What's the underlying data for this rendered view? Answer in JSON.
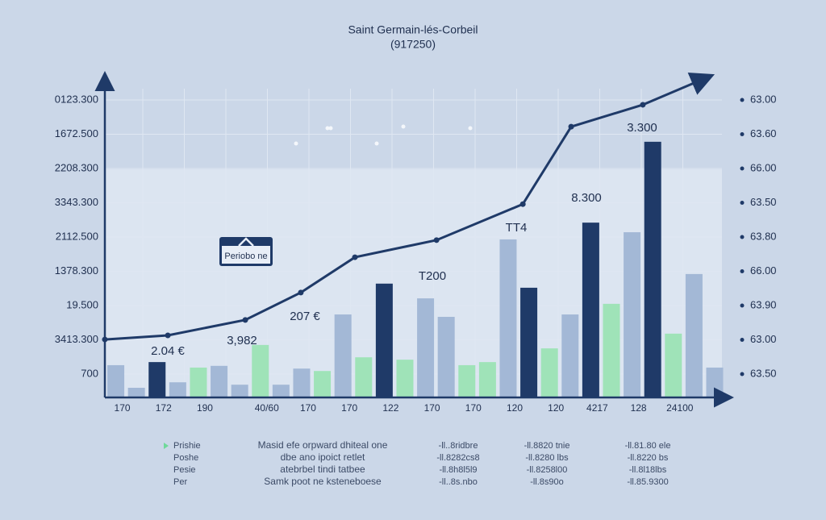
{
  "chart_data": {
    "type": "bar",
    "title": "Saint Germain-lés-Corbeil",
    "subtitle": "(917250)",
    "categories": [
      "170",
      null,
      "172",
      null,
      "190",
      null,
      null,
      "40/60",
      null,
      "170",
      null,
      "170",
      null,
      "122",
      null,
      "170",
      null,
      "170",
      null,
      "120",
      null,
      "120",
      null,
      "4217",
      null,
      "128",
      null,
      "24100",
      null,
      null
    ],
    "values": [
      1.26,
      0.6,
      1.35,
      0.76,
      1.19,
      1.24,
      0.69,
      1.85,
      0.69,
      1.16,
      1.09,
      2.74,
      1.49,
      3.64,
      1.42,
      3.21,
      2.67,
      1.26,
      1.35,
      4.93,
      3.52,
      1.75,
      2.74,
      5.42,
      3.05,
      5.14,
      7.78,
      2.18,
      3.92,
      1.19
    ],
    "colors": [
      "#a3b8d6",
      "#a3b8d6",
      "#1f3a68",
      "#a3b8d6",
      "#9fe3b8",
      "#a3b8d6",
      "#a3b8d6",
      "#9fe3b8",
      "#a3b8d6",
      "#a3b8d6",
      "#9fe3b8",
      "#a3b8d6",
      "#9fe3b8",
      "#1f3a68",
      "#9fe3b8",
      "#a3b8d6",
      "#a3b8d6",
      "#9fe3b8",
      "#9fe3b8",
      "#a3b8d6",
      "#1f3a68",
      "#9fe3b8",
      "#a3b8d6",
      "#1f3a68",
      "#9fe3b8",
      "#a3b8d6",
      "#1f3a68",
      "#9fe3b8",
      "#a3b8d6",
      "#a3b8d6"
    ],
    "line": {
      "color": "#1f3a68",
      "x": [
        -0.53,
        2.52,
        6.27,
        8.96,
        11.58,
        15.53,
        19.71,
        22.05,
        25.52,
        28.57
      ],
      "values": [
        2.01,
        2.13,
        2.58,
        3.38,
        4.41,
        4.91,
        5.96,
        8.22,
        8.86,
        9.64
      ]
    },
    "xlim": [
      -0.6,
      29.5
    ],
    "ylim": [
      0.3,
      9.7
    ],
    "yticks": [
      {
        "value": 1,
        "label": "700"
      },
      {
        "value": 2,
        "label": "3413.300"
      },
      {
        "value": 3,
        "label": "19.500"
      },
      {
        "value": 4,
        "label": "1378.300"
      },
      {
        "value": 5,
        "label": "2112.500"
      },
      {
        "value": 6,
        "label": "3343.300"
      },
      {
        "value": 7,
        "label": "2208.300"
      },
      {
        "value": 8,
        "label": "1672.500"
      },
      {
        "value": 9,
        "label": "0123.300"
      }
    ],
    "y2lim": [
      0.3,
      9.7
    ],
    "y2ticks": [
      {
        "value": 1,
        "label": "63.50"
      },
      {
        "value": 2,
        "label": "63.00"
      },
      {
        "value": 3,
        "label": "63.90"
      },
      {
        "value": 4,
        "label": "66.00"
      },
      {
        "value": 5,
        "label": "63.80"
      },
      {
        "value": 6,
        "label": "63.50"
      },
      {
        "value": 7,
        "label": "66.00"
      },
      {
        "value": 8,
        "label": "63.60"
      },
      {
        "value": 9,
        "label": "63.00"
      }
    ],
    "grid": true,
    "annotations": [
      "2.04 €",
      "3,982",
      "207 €",
      "T200",
      "TT4",
      "8.300",
      "3.300"
    ],
    "badge": "Periobo ne"
  },
  "footer_table": {
    "rows": [
      [
        "Prishie",
        "Masid efe orpward dhiteal one",
        "-ll..8ridbre",
        "-ll.8820 tnie",
        "-ll.81.80 ele"
      ],
      [
        "Poshe",
        "dbe ano ipoict retlet",
        "-ll.8282cs8",
        "-ll.8280 lbs",
        "-ll.8220 bs"
      ],
      [
        "Pesie",
        "atebrbel tindi tatbee",
        "-ll.8h8l5l9",
        "-ll.8258l00",
        "-ll.8l18lbs"
      ],
      [
        "Per",
        "Samk poot ne ksteneboese",
        "-ll..8s.nbo",
        "-ll.8s90o",
        "-ll.85.9300"
      ]
    ]
  }
}
